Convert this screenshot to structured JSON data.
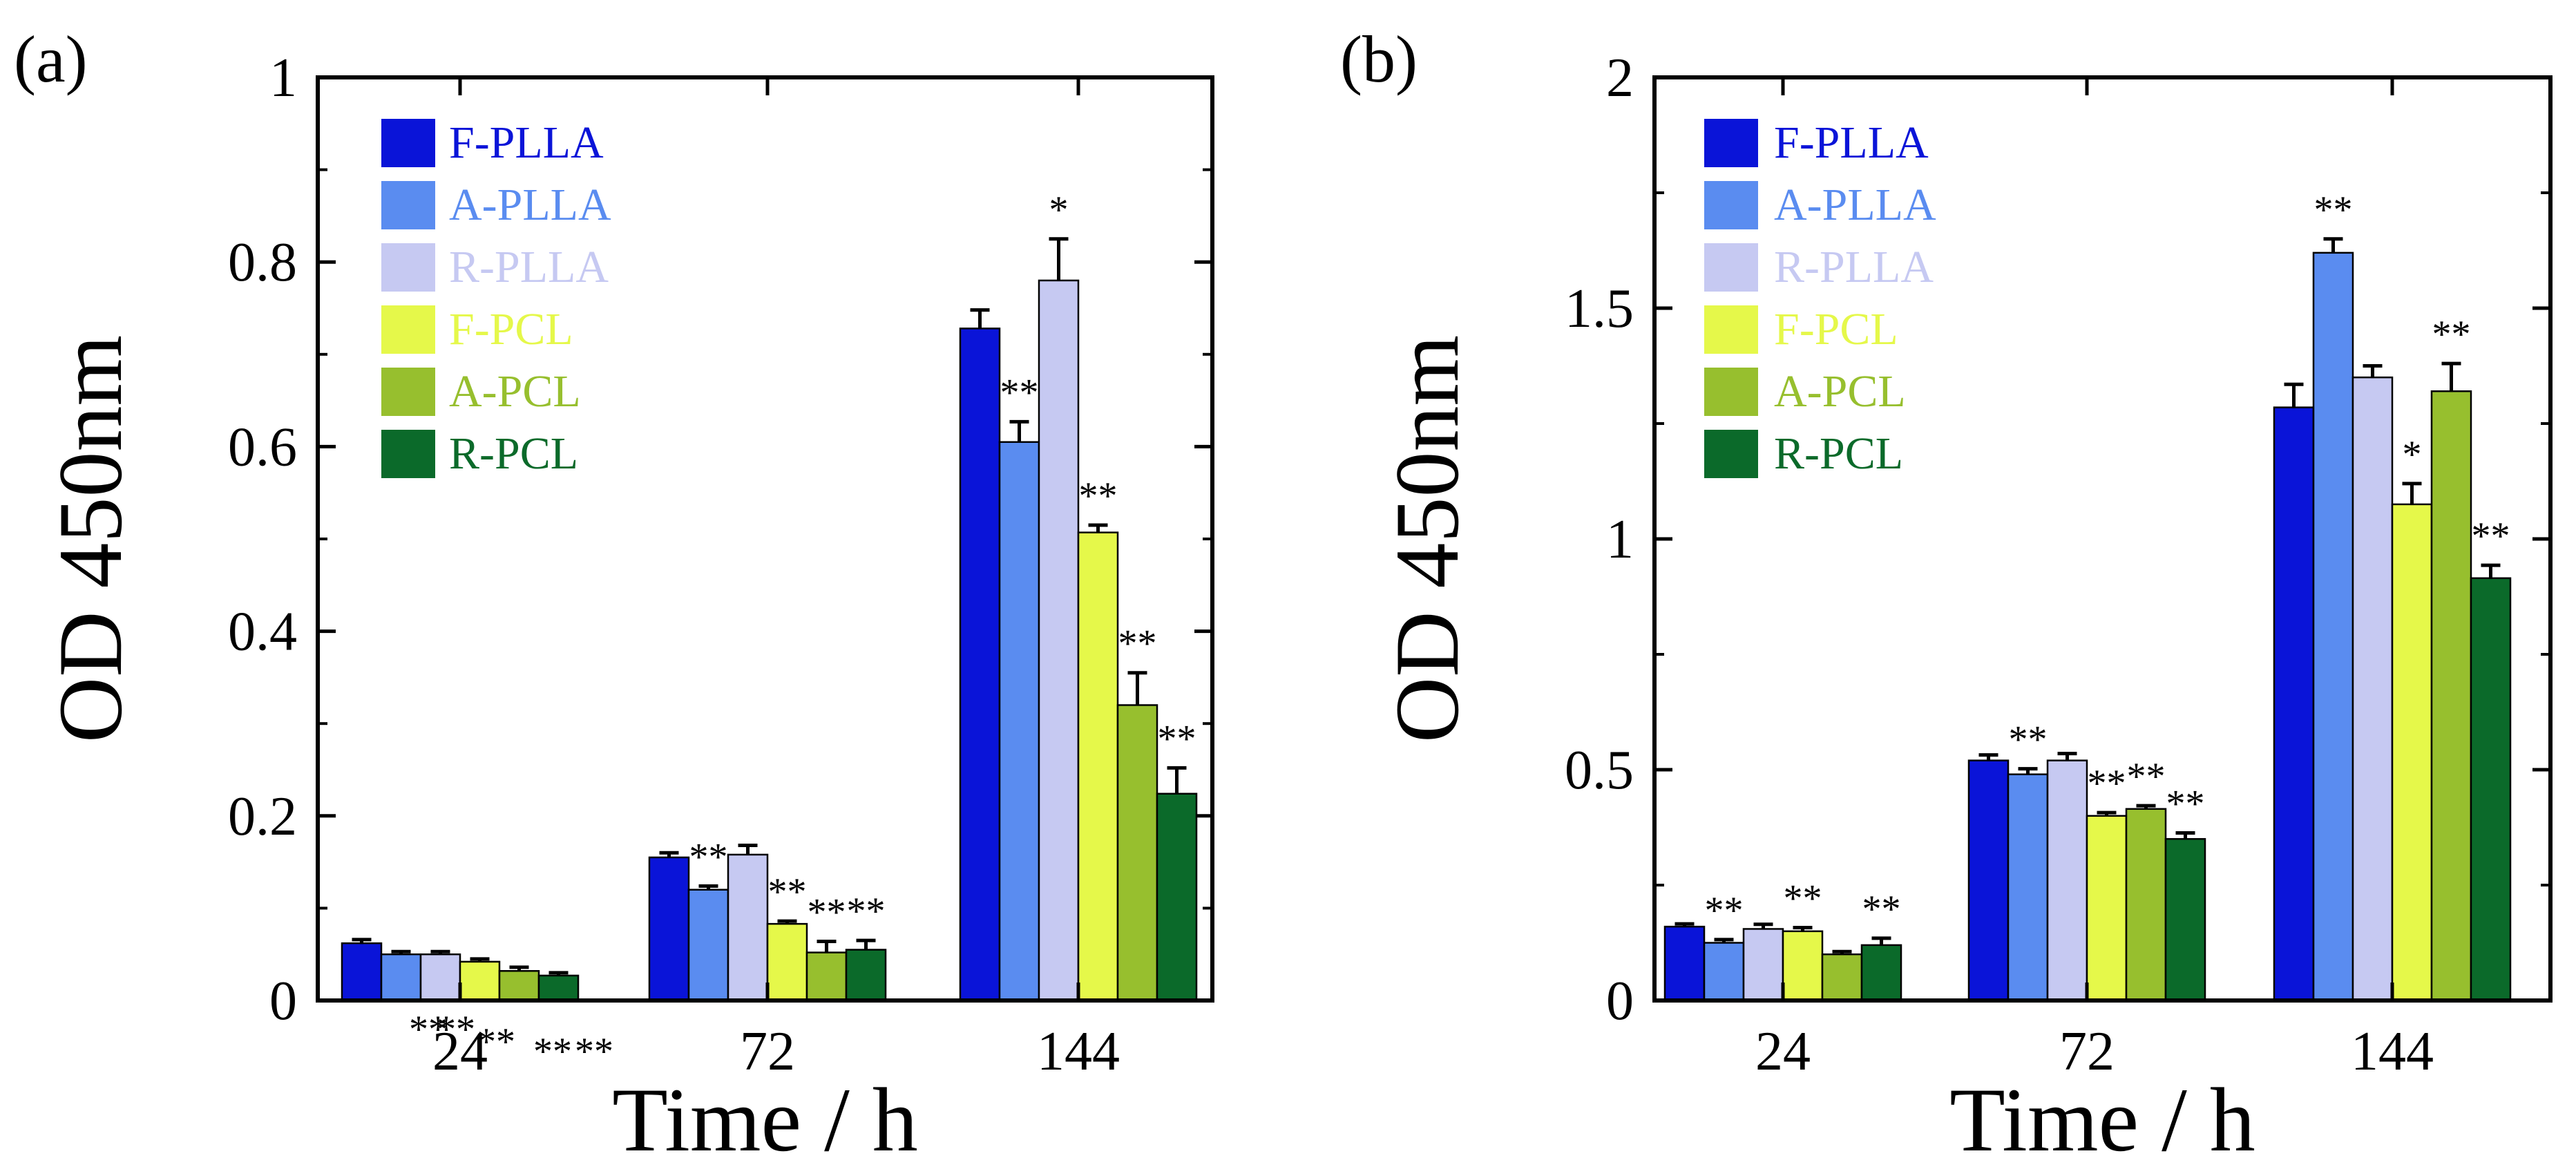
{
  "chart_data": [
    {
      "panel_label": "(a)",
      "type": "bar",
      "xlabel": "Time / h",
      "ylabel": "OD 450nm",
      "ylim": [
        0,
        1
      ],
      "ytick_labels": [
        "0",
        "0.2",
        "0.4",
        "0.6",
        "0.8",
        "1"
      ],
      "categories": [
        "24",
        "72",
        "144"
      ],
      "series": [
        {
          "name": "F-PLLA",
          "color": "#0a14d8",
          "values": [
            0.062,
            0.155,
            0.728
          ],
          "errors": [
            0.004,
            0.005,
            0.02
          ],
          "marks": [
            "",
            "",
            ""
          ]
        },
        {
          "name": "A-PLLA",
          "color": "#5a8cf0",
          "values": [
            0.05,
            0.12,
            0.605
          ],
          "errors": [
            0.003,
            0.004,
            0.022
          ],
          "marks": [
            "**",
            "**",
            "**"
          ]
        },
        {
          "name": "R-PLLA",
          "color": "#c6c9f2",
          "values": [
            0.05,
            0.158,
            0.78
          ],
          "errors": [
            0.003,
            0.01,
            0.045
          ],
          "marks": [
            "**",
            "",
            "*"
          ]
        },
        {
          "name": "F-PCL",
          "color": "#e5f84a",
          "values": [
            0.042,
            0.083,
            0.507
          ],
          "errors": [
            0.003,
            0.003,
            0.008
          ],
          "marks": [
            "**",
            "**",
            "**"
          ]
        },
        {
          "name": "A-PCL",
          "color": "#97bf2e",
          "values": [
            0.032,
            0.052,
            0.32
          ],
          "errors": [
            0.004,
            0.012,
            0.035
          ],
          "marks": [
            "**",
            "**",
            "**"
          ]
        },
        {
          "name": "R-PCL",
          "color": "#0b6a2a",
          "values": [
            0.027,
            0.055,
            0.224
          ],
          "errors": [
            0.003,
            0.01,
            0.028
          ],
          "marks": [
            "**",
            "**",
            "**"
          ]
        }
      ]
    },
    {
      "panel_label": "(b)",
      "type": "bar",
      "xlabel": "Time / h",
      "ylabel": "OD 450nm",
      "ylim": [
        0,
        2
      ],
      "ytick_labels": [
        "0",
        "0.5",
        "1",
        "1.5",
        "2"
      ],
      "categories": [
        "24",
        "72",
        "144"
      ],
      "series": [
        {
          "name": "F-PLLA",
          "color": "#0a14d8",
          "values": [
            0.16,
            0.52,
            1.285
          ],
          "errors": [
            0.006,
            0.012,
            0.05
          ],
          "marks": [
            "",
            "",
            ""
          ]
        },
        {
          "name": "A-PLLA",
          "color": "#5a8cf0",
          "values": [
            0.125,
            0.49,
            1.62
          ],
          "errors": [
            0.007,
            0.012,
            0.03
          ],
          "marks": [
            "**",
            "**",
            "**"
          ]
        },
        {
          "name": "R-PLLA",
          "color": "#c6c9f2",
          "values": [
            0.155,
            0.52,
            1.35
          ],
          "errors": [
            0.01,
            0.015,
            0.025
          ],
          "marks": [
            "",
            "",
            ""
          ]
        },
        {
          "name": "F-PCL",
          "color": "#e5f84a",
          "values": [
            0.15,
            0.4,
            1.075
          ],
          "errors": [
            0.008,
            0.007,
            0.045
          ],
          "marks": [
            "**",
            "**",
            "*"
          ]
        },
        {
          "name": "A-PCL",
          "color": "#97bf2e",
          "values": [
            0.1,
            0.415,
            1.32
          ],
          "errors": [
            0.006,
            0.007,
            0.06
          ],
          "marks": [
            "",
            "**",
            "**"
          ]
        },
        {
          "name": "R-PCL",
          "color": "#0b6a2a",
          "values": [
            0.12,
            0.35,
            0.915
          ],
          "errors": [
            0.015,
            0.013,
            0.028
          ],
          "marks": [
            "**",
            "**",
            "**"
          ]
        }
      ]
    }
  ]
}
